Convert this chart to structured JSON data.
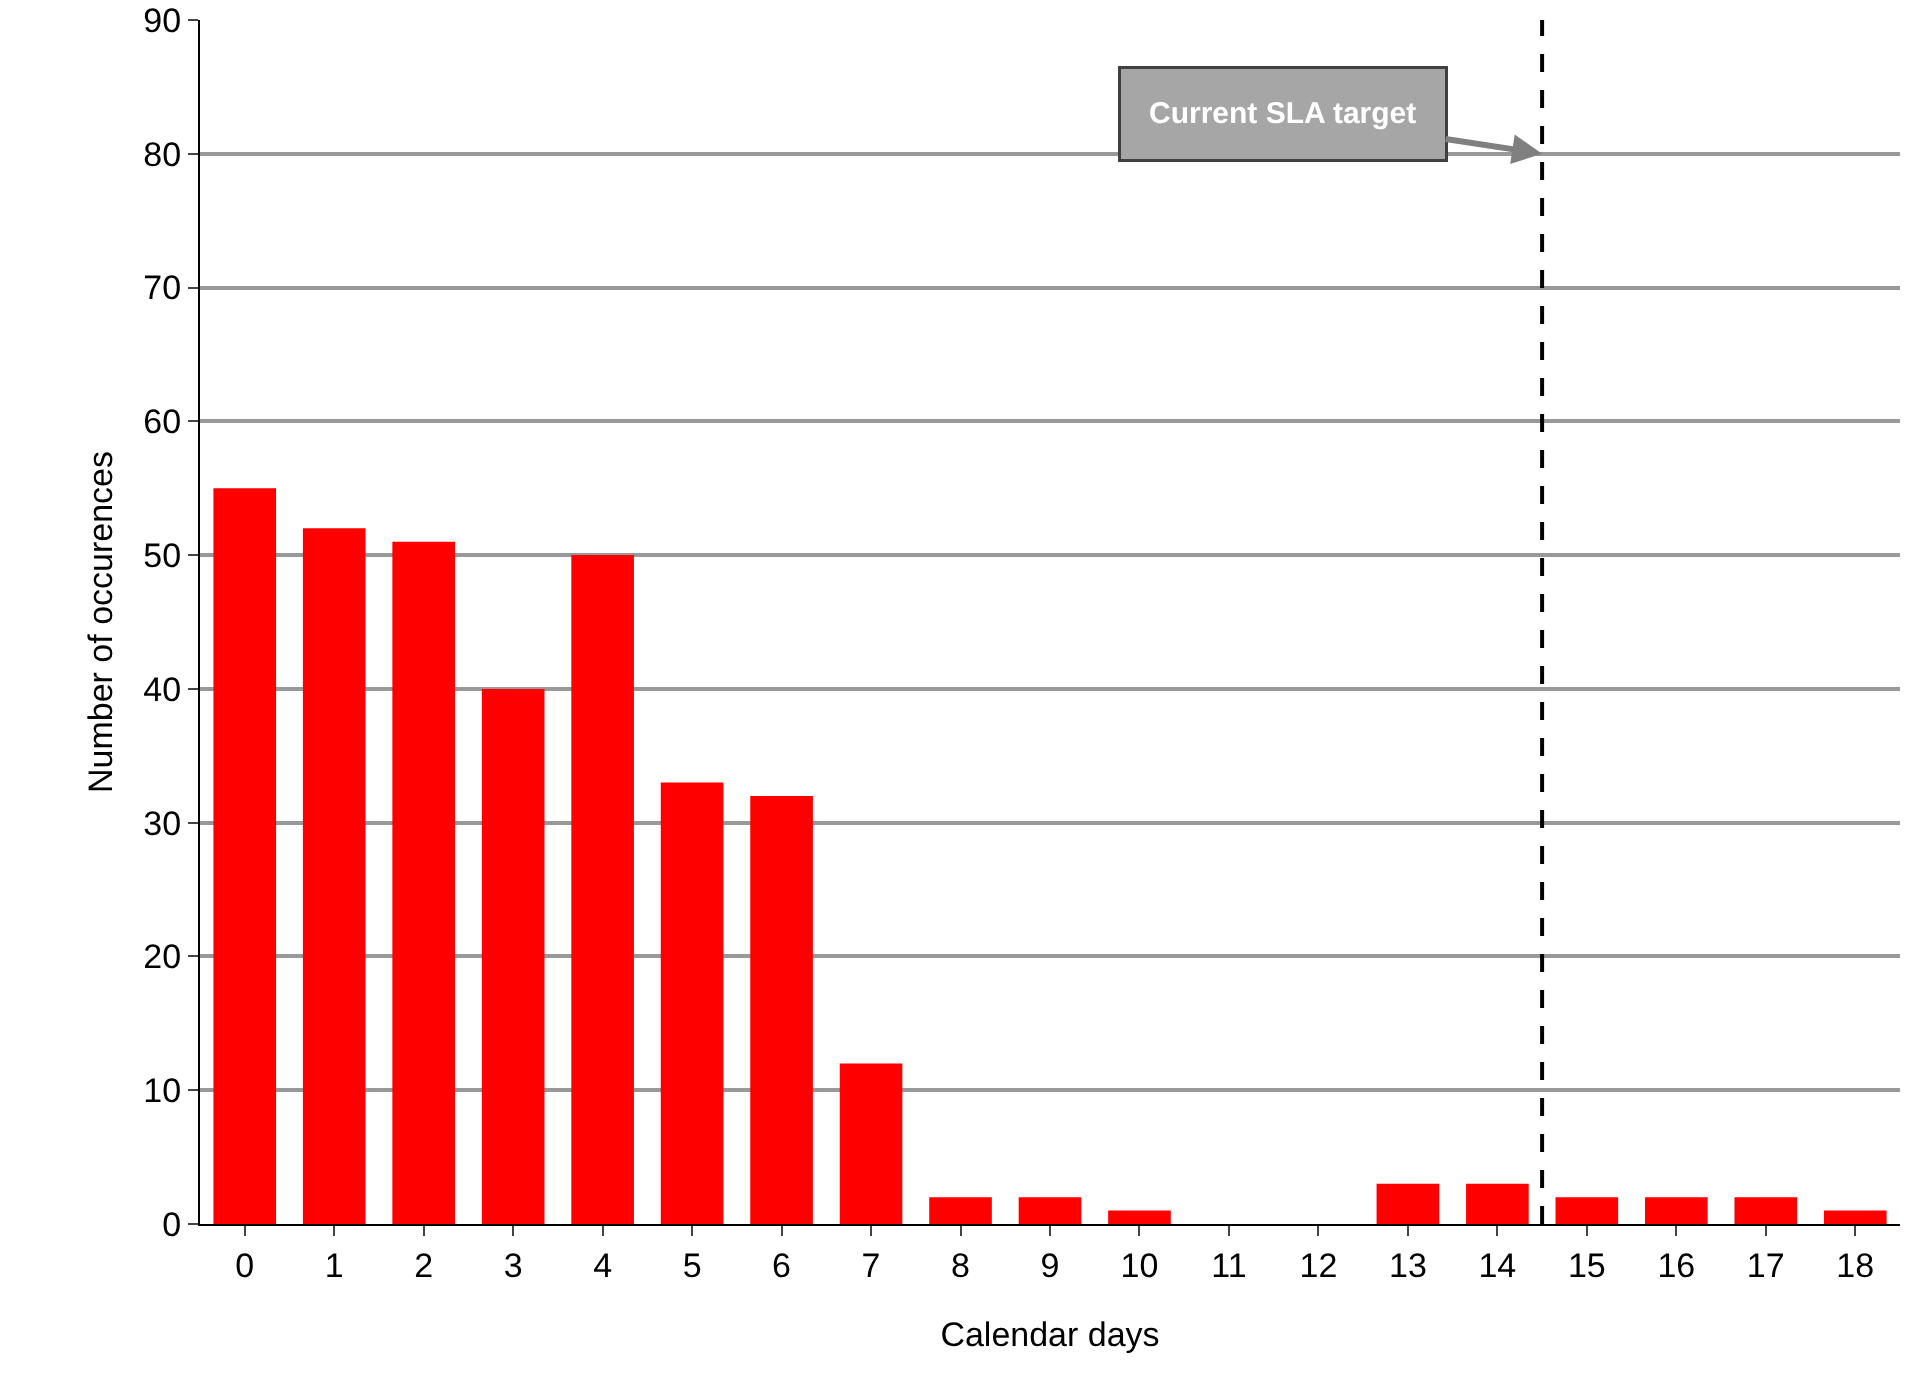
{
  "chart_data": {
    "type": "bar",
    "xlabel": "Calendar days",
    "ylabel": "Number of occurences",
    "x": [
      0,
      1,
      2,
      3,
      4,
      5,
      6,
      7,
      8,
      9,
      10,
      11,
      12,
      13,
      14,
      15,
      16,
      17,
      18
    ],
    "values": [
      55,
      52,
      51,
      40,
      50,
      33,
      32,
      12,
      2,
      2,
      1,
      0,
      0,
      3,
      3,
      2,
      2,
      2,
      1
    ],
    "color": "#ff0000",
    "xlim": [
      -0.5,
      18.5
    ],
    "xticks": [
      0,
      1,
      2,
      3,
      4,
      5,
      6,
      7,
      8,
      9,
      10,
      11,
      12,
      13,
      14,
      15,
      16,
      17,
      18
    ],
    "ylim": [
      0,
      90
    ],
    "yticks": [
      0,
      10,
      20,
      30,
      40,
      50,
      60,
      70,
      80,
      90
    ],
    "grid": "y",
    "ref_lines": [
      {
        "axis": "x",
        "value": 14.5,
        "label": "Current SLA target",
        "color": "#000000",
        "line_style": "dashed"
      }
    ]
  }
}
